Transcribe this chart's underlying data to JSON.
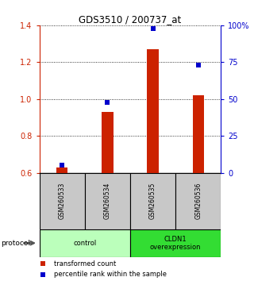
{
  "title": "GDS3510 / 200737_at",
  "samples": [
    "GSM260533",
    "GSM260534",
    "GSM260535",
    "GSM260536"
  ],
  "red_values": [
    0.63,
    0.93,
    1.27,
    1.02
  ],
  "blue_values": [
    0.685,
    0.905,
    1.375,
    1.185
  ],
  "ylim_left": [
    0.6,
    1.4
  ],
  "ylim_right": [
    0,
    100
  ],
  "yticks_left": [
    0.6,
    0.8,
    1.0,
    1.2,
    1.4
  ],
  "yticks_right": [
    0,
    25,
    50,
    75,
    100
  ],
  "ytick_labels_right": [
    "0",
    "25",
    "50",
    "75",
    "100%"
  ],
  "grid_lines": [
    0.8,
    1.0,
    1.2,
    1.4
  ],
  "groups": [
    {
      "label": "control",
      "samples": [
        0,
        1
      ],
      "color": "#bbffbb"
    },
    {
      "label": "CLDN1\noverexpression",
      "samples": [
        2,
        3
      ],
      "color": "#33dd33"
    }
  ],
  "protocol_label": "protocol",
  "legend_red": "transformed count",
  "legend_blue": "percentile rank within the sample",
  "bar_color": "#cc2200",
  "dot_color": "#0000cc",
  "left_axis_color": "#cc2200",
  "right_axis_color": "#0000cc",
  "background_color": "#ffffff",
  "sample_bg_color": "#c8c8c8",
  "bar_width": 0.25
}
